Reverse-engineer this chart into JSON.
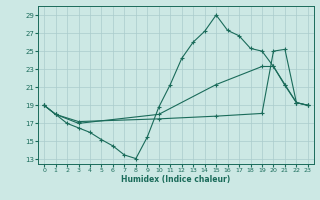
{
  "xlabel": "Humidex (Indice chaleur)",
  "bg_color": "#cce8e4",
  "line_color": "#1a6b5a",
  "grid_color": "#aacccc",
  "xlim": [
    -0.5,
    23.5
  ],
  "ylim": [
    12.5,
    30.0
  ],
  "xticks": [
    0,
    1,
    2,
    3,
    4,
    5,
    6,
    7,
    8,
    9,
    10,
    11,
    12,
    13,
    14,
    15,
    16,
    17,
    18,
    19,
    20,
    21,
    22,
    23
  ],
  "yticks": [
    13,
    15,
    17,
    19,
    21,
    23,
    25,
    27,
    29
  ],
  "line1_x": [
    0,
    1,
    2,
    3,
    4,
    5,
    6,
    7,
    8,
    9,
    10,
    11,
    12,
    13,
    14,
    15,
    16,
    17,
    18,
    19,
    20,
    21,
    22,
    23
  ],
  "line1_y": [
    19.0,
    18.0,
    17.0,
    16.5,
    16.0,
    15.2,
    14.5,
    13.5,
    13.1,
    15.5,
    18.8,
    21.3,
    24.2,
    26.0,
    27.2,
    29.0,
    27.3,
    26.7,
    25.3,
    25.0,
    23.3,
    21.2,
    19.3,
    19.0
  ],
  "line2_x": [
    0,
    1,
    3,
    10,
    15,
    19,
    20,
    21,
    22,
    23
  ],
  "line2_y": [
    19.0,
    18.0,
    17.0,
    18.0,
    21.3,
    23.3,
    23.3,
    21.3,
    19.3,
    19.0
  ],
  "line3_x": [
    0,
    1,
    3,
    10,
    15,
    19,
    20,
    21,
    22,
    23
  ],
  "line3_y": [
    19.0,
    18.0,
    17.2,
    17.5,
    17.8,
    18.1,
    25.0,
    25.2,
    19.3,
    19.0
  ]
}
